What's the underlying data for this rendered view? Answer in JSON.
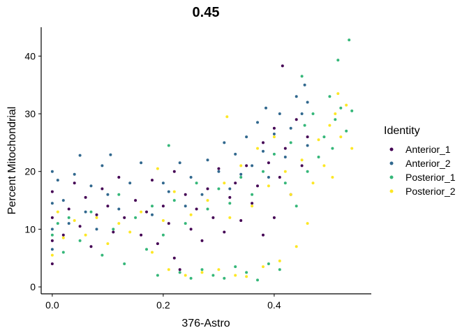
{
  "chart_data": {
    "type": "scatter",
    "title": "0.45",
    "xlabel": "376-Astro",
    "ylabel": "Percent Mitochondrial",
    "xlim": [
      -0.02,
      0.575
    ],
    "ylim": [
      -1.2,
      45
    ],
    "x_ticks": [
      0.0,
      0.2,
      0.4
    ],
    "x_tick_labels": [
      "0.0",
      "0.2",
      "0.4"
    ],
    "y_ticks": [
      0,
      10,
      20,
      30,
      40
    ],
    "y_tick_labels": [
      "0",
      "10",
      "20",
      "30",
      "40"
    ],
    "grid": false,
    "legend": {
      "title": "Identity",
      "position": "right"
    },
    "series": [
      {
        "name": "Anterior_1",
        "color": "#440154",
        "points": [
          [
            0.0,
            4.0
          ],
          [
            0.0,
            8.0
          ],
          [
            0.0,
            12.0
          ],
          [
            0.0,
            16.5
          ],
          [
            0.02,
            9.0
          ],
          [
            0.03,
            13.5
          ],
          [
            0.04,
            18.0
          ],
          [
            0.05,
            10.5
          ],
          [
            0.06,
            15.5
          ],
          [
            0.07,
            7.0
          ],
          [
            0.08,
            12.5
          ],
          [
            0.09,
            17.0
          ],
          [
            0.1,
            14.0
          ],
          [
            0.11,
            9.5
          ],
          [
            0.12,
            19.0
          ],
          [
            0.13,
            12.0
          ],
          [
            0.15,
            15.0
          ],
          [
            0.16,
            9.0
          ],
          [
            0.17,
            13.0
          ],
          [
            0.18,
            18.5
          ],
          [
            0.19,
            7.5
          ],
          [
            0.2,
            14.0
          ],
          [
            0.21,
            11.0
          ],
          [
            0.22,
            20.0
          ],
          [
            0.22,
            5.0
          ],
          [
            0.23,
            3.0
          ],
          [
            0.24,
            16.0
          ],
          [
            0.25,
            10.0
          ],
          [
            0.26,
            13.5
          ],
          [
            0.27,
            8.0
          ],
          [
            0.28,
            17.0
          ],
          [
            0.29,
            12.0
          ],
          [
            0.3,
            20.5
          ],
          [
            0.31,
            9.5
          ],
          [
            0.32,
            15.5
          ],
          [
            0.33,
            18.0
          ],
          [
            0.34,
            11.5
          ],
          [
            0.35,
            21.0
          ],
          [
            0.36,
            14.5
          ],
          [
            0.37,
            17.5
          ],
          [
            0.38,
            25.0
          ],
          [
            0.38,
            9.0
          ],
          [
            0.39,
            21.5
          ],
          [
            0.4,
            27.5
          ],
          [
            0.4,
            12.0
          ],
          [
            0.41,
            19.0
          ],
          [
            0.415,
            38.3
          ],
          [
            0.42,
            24.0
          ],
          [
            0.43,
            16.0
          ],
          [
            0.44,
            29.0
          ],
          [
            0.45,
            21.0
          ],
          [
            0.46,
            26.0
          ]
        ]
      },
      {
        "name": "Anterior_2",
        "color": "#31688E",
        "points": [
          [
            0.0,
            20.0
          ],
          [
            0.0,
            14.5
          ],
          [
            0.0,
            10.0
          ],
          [
            0.0,
            6.5
          ],
          [
            0.01,
            18.5
          ],
          [
            0.02,
            15.0
          ],
          [
            0.03,
            11.0
          ],
          [
            0.04,
            19.5
          ],
          [
            0.05,
            22.8
          ],
          [
            0.06,
            13.0
          ],
          [
            0.07,
            17.5
          ],
          [
            0.08,
            10.0
          ],
          [
            0.09,
            21.0
          ],
          [
            0.1,
            16.0
          ],
          [
            0.105,
            22.9
          ],
          [
            0.12,
            13.5
          ],
          [
            0.14,
            18.0
          ],
          [
            0.16,
            21.5
          ],
          [
            0.18,
            12.5
          ],
          [
            0.2,
            18.0
          ],
          [
            0.21,
            16.5
          ],
          [
            0.23,
            21.5
          ],
          [
            0.24,
            14.0
          ],
          [
            0.25,
            19.0
          ],
          [
            0.27,
            16.0
          ],
          [
            0.28,
            22.0
          ],
          [
            0.3,
            20.0
          ],
          [
            0.31,
            25.0
          ],
          [
            0.32,
            17.0
          ],
          [
            0.33,
            23.0
          ],
          [
            0.34,
            19.5
          ],
          [
            0.35,
            26.0
          ],
          [
            0.36,
            21.0
          ],
          [
            0.37,
            28.5
          ],
          [
            0.38,
            23.5
          ],
          [
            0.385,
            31.0
          ],
          [
            0.39,
            19.0
          ],
          [
            0.4,
            26.5
          ],
          [
            0.41,
            30.0
          ],
          [
            0.42,
            22.5
          ],
          [
            0.43,
            27.5
          ],
          [
            0.44,
            33.0
          ],
          [
            0.45,
            30.0
          ],
          [
            0.455,
            35.0
          ],
          [
            0.46,
            24.5
          ],
          [
            0.46,
            32.0
          ]
        ]
      },
      {
        "name": "Posterior_1",
        "color": "#35B779",
        "points": [
          [
            0.0,
            9.0
          ],
          [
            0.01,
            11.0
          ],
          [
            0.02,
            6.0
          ],
          [
            0.03,
            12.0
          ],
          [
            0.05,
            8.0
          ],
          [
            0.07,
            13.0
          ],
          [
            0.09,
            5.5
          ],
          [
            0.11,
            10.0
          ],
          [
            0.12,
            16.0
          ],
          [
            0.13,
            4.0
          ],
          [
            0.15,
            12.0
          ],
          [
            0.17,
            6.5
          ],
          [
            0.18,
            14.0
          ],
          [
            0.19,
            2.0
          ],
          [
            0.2,
            9.0
          ],
          [
            0.21,
            24.5
          ],
          [
            0.22,
            15.0
          ],
          [
            0.23,
            2.5
          ],
          [
            0.24,
            11.0
          ],
          [
            0.25,
            1.5
          ],
          [
            0.26,
            18.0
          ],
          [
            0.27,
            3.0
          ],
          [
            0.28,
            13.5
          ],
          [
            0.29,
            2.0
          ],
          [
            0.3,
            17.0
          ],
          [
            0.31,
            1.5
          ],
          [
            0.32,
            14.5
          ],
          [
            0.33,
            3.5
          ],
          [
            0.34,
            19.0
          ],
          [
            0.35,
            2.5
          ],
          [
            0.36,
            16.0
          ],
          [
            0.37,
            1.2
          ],
          [
            0.38,
            20.0
          ],
          [
            0.39,
            4.0
          ],
          [
            0.4,
            23.0
          ],
          [
            0.41,
            3.0
          ],
          [
            0.42,
            18.0
          ],
          [
            0.43,
            25.0
          ],
          [
            0.44,
            14.0
          ],
          [
            0.45,
            36.5
          ],
          [
            0.455,
            28.0
          ],
          [
            0.46,
            20.0
          ],
          [
            0.47,
            30.0
          ],
          [
            0.48,
            22.5
          ],
          [
            0.49,
            26.0
          ],
          [
            0.5,
            33.0
          ],
          [
            0.505,
            24.0
          ],
          [
            0.51,
            29.0
          ],
          [
            0.515,
            39.3
          ],
          [
            0.52,
            31.0
          ],
          [
            0.53,
            27.0
          ],
          [
            0.535,
            42.8
          ],
          [
            0.54,
            30.5
          ]
        ]
      },
      {
        "name": "Posterior_2",
        "color": "#FDE725",
        "points": [
          [
            0.0,
            5.5
          ],
          [
            0.01,
            13.0
          ],
          [
            0.02,
            8.5
          ],
          [
            0.04,
            11.5
          ],
          [
            0.06,
            9.0
          ],
          [
            0.08,
            12.0
          ],
          [
            0.1,
            7.5
          ],
          [
            0.12,
            11.0
          ],
          [
            0.14,
            9.5
          ],
          [
            0.16,
            13.0
          ],
          [
            0.18,
            6.0
          ],
          [
            0.19,
            20.5
          ],
          [
            0.2,
            11.5
          ],
          [
            0.21,
            3.0
          ],
          [
            0.22,
            16.5
          ],
          [
            0.24,
            2.0
          ],
          [
            0.25,
            12.5
          ],
          [
            0.27,
            2.5
          ],
          [
            0.28,
            15.0
          ],
          [
            0.3,
            3.0
          ],
          [
            0.31,
            18.0
          ],
          [
            0.315,
            29.5
          ],
          [
            0.32,
            12.0
          ],
          [
            0.33,
            2.0
          ],
          [
            0.34,
            21.0
          ],
          [
            0.35,
            1.8
          ],
          [
            0.36,
            14.0
          ],
          [
            0.37,
            24.0
          ],
          [
            0.38,
            3.5
          ],
          [
            0.39,
            17.5
          ],
          [
            0.4,
            26.0
          ],
          [
            0.41,
            4.5
          ],
          [
            0.42,
            20.0
          ],
          [
            0.43,
            16.0
          ],
          [
            0.44,
            7.0
          ],
          [
            0.45,
            22.0
          ],
          [
            0.46,
            11.0
          ],
          [
            0.47,
            18.0
          ],
          [
            0.48,
            25.5
          ],
          [
            0.49,
            21.0
          ],
          [
            0.5,
            28.0
          ],
          [
            0.505,
            19.0
          ],
          [
            0.51,
            30.0
          ],
          [
            0.515,
            33.5
          ],
          [
            0.52,
            26.0
          ],
          [
            0.53,
            31.5
          ],
          [
            0.54,
            24.0
          ]
        ]
      }
    ]
  }
}
